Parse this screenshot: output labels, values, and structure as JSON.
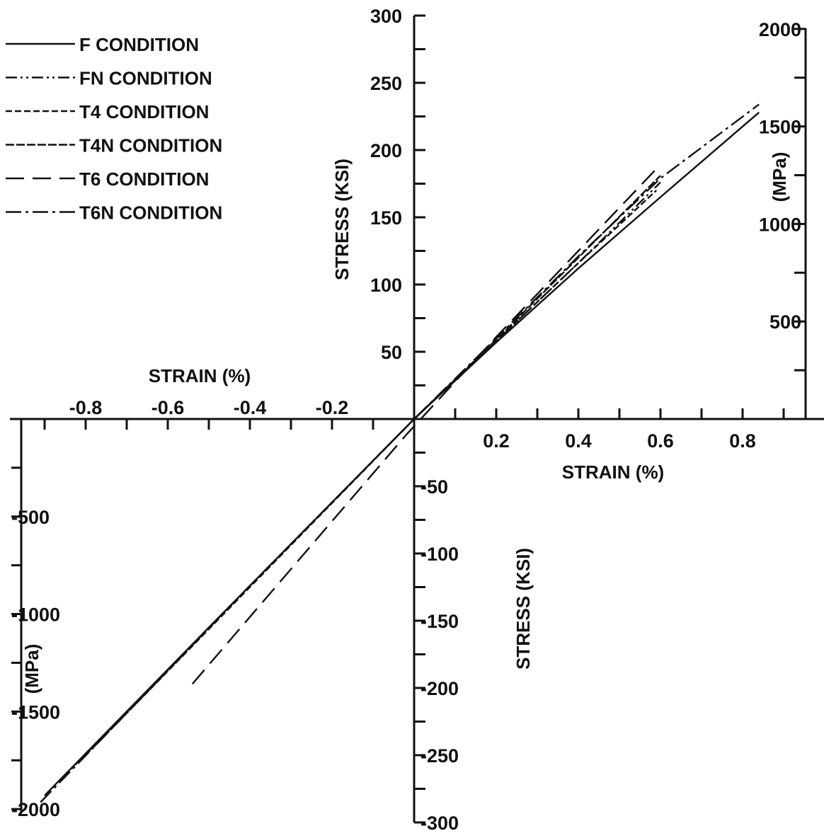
{
  "chart_data": {
    "type": "line",
    "colors": {
      "ink": "#111111",
      "background": "#ffffff"
    },
    "legend": {
      "placement": "top-left"
    },
    "axes": {
      "x_top_label": "STRAIN (%)",
      "x_bottom_label": "STRAIN (%)",
      "y_left_label_tension": "STRESS (KSI)",
      "y_left_label_compression": "STRESS (KSI)",
      "y_right_label": "(MPa)",
      "y_left_mpa_label": "(MPa)",
      "x_range": [
        -0.9,
        0.95
      ],
      "y_range_ksi": [
        -300,
        300
      ],
      "x_ticks_negative": [
        {
          "v": -0.8,
          "label": "-0.8"
        },
        {
          "v": -0.6,
          "label": "-0.6"
        },
        {
          "v": -0.4,
          "label": "-0.4"
        },
        {
          "v": -0.2,
          "label": "-0.2"
        }
      ],
      "x_ticks_positive": [
        {
          "v": 0.2,
          "label": "0.2"
        },
        {
          "v": 0.4,
          "label": "0.4"
        },
        {
          "v": 0.6,
          "label": "0.6"
        },
        {
          "v": 0.8,
          "label": "0.8"
        }
      ],
      "y_ticks_ksi_positive": [
        {
          "v": 50,
          "label": "50"
        },
        {
          "v": 100,
          "label": "100"
        },
        {
          "v": 150,
          "label": "150"
        },
        {
          "v": 200,
          "label": "200"
        },
        {
          "v": 250,
          "label": "250"
        },
        {
          "v": 300,
          "label": "300"
        }
      ],
      "y_ticks_ksi_negative": [
        {
          "v": -50,
          "label": "-50"
        },
        {
          "v": -100,
          "label": "-100"
        },
        {
          "v": -150,
          "label": "-150"
        },
        {
          "v": -200,
          "label": "-200"
        },
        {
          "v": -250,
          "label": "-250"
        },
        {
          "v": -300,
          "label": "-300"
        }
      ],
      "y_ticks_mpa_positive": [
        {
          "v": 500,
          "label": "500"
        },
        {
          "v": 1000,
          "label": "1000"
        },
        {
          "v": 1500,
          "label": "1500"
        },
        {
          "v": 2000,
          "label": "2000"
        }
      ],
      "y_ticks_mpa_negative": [
        {
          "v": -500,
          "label": "-500"
        },
        {
          "v": -1000,
          "label": "-1000"
        },
        {
          "v": -1500,
          "label": "-1500"
        },
        {
          "v": -2000,
          "label": "-2000"
        }
      ]
    },
    "series": [
      {
        "name": "F CONDITION",
        "dash": "solid",
        "points": [
          [
            -0.9,
            -280
          ],
          [
            -0.5,
            -155
          ],
          [
            0,
            0
          ],
          [
            0.2,
            57
          ],
          [
            0.4,
            112
          ],
          [
            0.6,
            165
          ],
          [
            0.84,
            228
          ]
        ]
      },
      {
        "name": "FN CONDITION",
        "dash": "dashdotdot",
        "points": [
          [
            -0.86,
            -268
          ],
          [
            -0.4,
            -124
          ],
          [
            0,
            0
          ],
          [
            0.2,
            58
          ],
          [
            0.4,
            116
          ],
          [
            0.6,
            176
          ]
        ]
      },
      {
        "name": "T4 CONDITION",
        "dash": "shortdash",
        "points": [
          [
            -0.8,
            -250
          ],
          [
            0,
            0
          ],
          [
            0.2,
            58
          ],
          [
            0.4,
            116
          ],
          [
            0.59,
            170
          ]
        ]
      },
      {
        "name": "T4N CONDITION",
        "dash": "densedash",
        "points": [
          [
            0,
            0
          ],
          [
            0.2,
            59
          ],
          [
            0.4,
            120
          ],
          [
            0.6,
            181
          ]
        ]
      },
      {
        "name": "T6 CONDITION",
        "dash": "longdash",
        "points": [
          [
            -0.54,
            -197
          ],
          [
            -0.02,
            -12
          ],
          [
            0.2,
            61
          ],
          [
            0.4,
            125
          ],
          [
            0.59,
            186
          ]
        ]
      },
      {
        "name": "T6N CONDITION",
        "dash": "dashdot",
        "points": [
          [
            -0.91,
            -285
          ],
          [
            -0.4,
            -124
          ],
          [
            0,
            0
          ],
          [
            0.2,
            60
          ],
          [
            0.4,
            121
          ],
          [
            0.6,
            179
          ],
          [
            0.84,
            234
          ]
        ]
      }
    ]
  }
}
